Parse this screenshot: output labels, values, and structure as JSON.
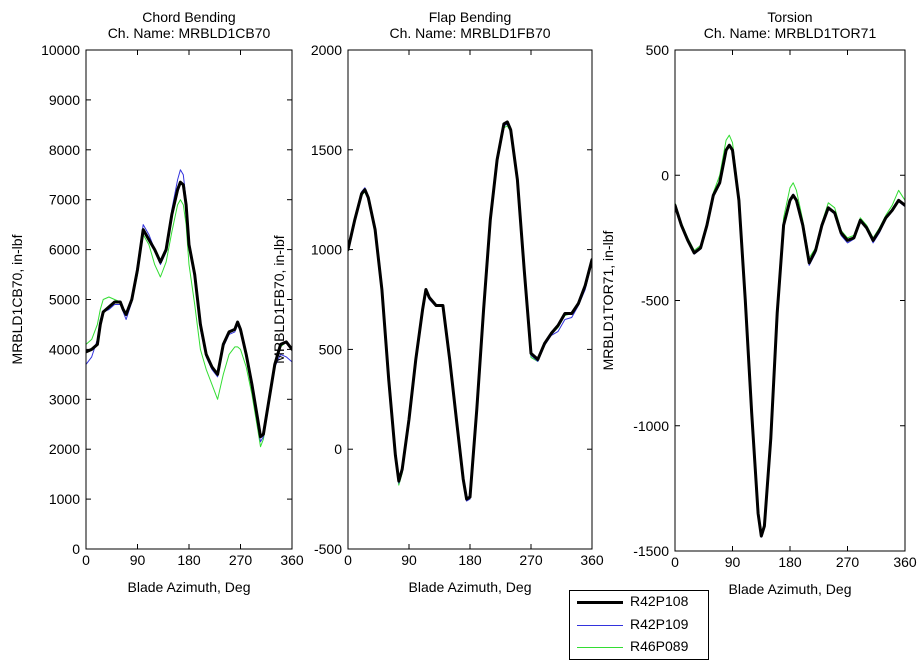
{
  "chart_data": [
    {
      "type": "line",
      "title": "Chord Bending",
      "subtitle": "Ch. Name: MRBLD1CB70",
      "xlabel": "Blade Azimuth, Deg",
      "ylabel": "MRBLD1CB70, in-lbf",
      "xlim": [
        0,
        360
      ],
      "ylim": [
        0,
        10000
      ],
      "xticks": [
        0,
        90,
        180,
        270,
        360
      ],
      "yticks": [
        0,
        1000,
        2000,
        3000,
        4000,
        5000,
        6000,
        7000,
        8000,
        9000,
        10000
      ],
      "grid": false,
      "series": [
        {
          "name": "R42P108",
          "x": [
            0,
            10,
            20,
            25,
            30,
            40,
            50,
            60,
            65,
            70,
            80,
            90,
            100,
            110,
            120,
            130,
            140,
            150,
            160,
            165,
            170,
            175,
            180,
            190,
            200,
            210,
            220,
            230,
            240,
            250,
            260,
            265,
            270,
            280,
            290,
            300,
            305,
            310,
            320,
            330,
            340,
            350,
            360
          ],
          "y": [
            3950,
            4000,
            4100,
            4500,
            4750,
            4850,
            4950,
            4950,
            4800,
            4700,
            5000,
            5600,
            6400,
            6200,
            6000,
            5750,
            6000,
            6700,
            7200,
            7350,
            7300,
            6900,
            6100,
            5500,
            4500,
            3900,
            3650,
            3500,
            4100,
            4350,
            4400,
            4550,
            4400,
            3900,
            3300,
            2600,
            2250,
            2300,
            3000,
            3700,
            4100,
            4150,
            4000
          ]
        },
        {
          "name": "R42P109",
          "x": [
            0,
            10,
            20,
            25,
            30,
            40,
            50,
            60,
            65,
            70,
            80,
            90,
            100,
            110,
            120,
            130,
            140,
            150,
            160,
            165,
            170,
            175,
            180,
            190,
            200,
            210,
            220,
            230,
            240,
            250,
            260,
            265,
            270,
            280,
            290,
            300,
            305,
            310,
            320,
            330,
            340,
            350,
            360
          ],
          "y": [
            3700,
            3850,
            4200,
            4600,
            4750,
            4800,
            4900,
            4900,
            4750,
            4600,
            4950,
            5700,
            6500,
            6300,
            6000,
            5700,
            5950,
            6800,
            7400,
            7600,
            7500,
            7000,
            6100,
            5400,
            4400,
            3850,
            3600,
            3450,
            4050,
            4300,
            4350,
            4500,
            4350,
            3850,
            3250,
            2500,
            2150,
            2250,
            2950,
            3650,
            3900,
            3850,
            3750
          ]
        },
        {
          "name": "R46P089",
          "x": [
            0,
            10,
            20,
            25,
            30,
            40,
            50,
            60,
            65,
            70,
            80,
            90,
            100,
            110,
            120,
            130,
            140,
            150,
            160,
            165,
            170,
            175,
            180,
            190,
            200,
            210,
            220,
            230,
            240,
            250,
            260,
            265,
            270,
            280,
            290,
            300,
            305,
            310,
            320,
            330,
            340,
            350,
            360
          ],
          "y": [
            4100,
            4200,
            4500,
            4800,
            5000,
            5050,
            5000,
            4950,
            4800,
            4700,
            4950,
            5500,
            6300,
            6100,
            5700,
            5450,
            5750,
            6350,
            6900,
            7000,
            6900,
            6500,
            5700,
            4900,
            4000,
            3600,
            3300,
            3000,
            3500,
            3900,
            4050,
            4050,
            4000,
            3650,
            3100,
            2400,
            2050,
            2200,
            2950,
            3700,
            4050,
            4150,
            4000
          ]
        }
      ]
    },
    {
      "type": "line",
      "title": "Flap Bending",
      "subtitle": "Ch. Name: MRBLD1FB70",
      "xlabel": "Blade Azimuth, Deg",
      "ylabel": "MRBLD1FB70, in-lbf",
      "xlim": [
        0,
        360
      ],
      "ylim": [
        -500,
        2000
      ],
      "xticks": [
        0,
        90,
        180,
        270,
        360
      ],
      "yticks": [
        -500,
        0,
        500,
        1000,
        1500,
        2000
      ],
      "grid": false,
      "series": [
        {
          "name": "R42P108",
          "x": [
            0,
            10,
            20,
            25,
            30,
            40,
            50,
            60,
            70,
            75,
            80,
            90,
            100,
            110,
            115,
            120,
            130,
            140,
            150,
            160,
            170,
            175,
            180,
            190,
            200,
            210,
            220,
            230,
            235,
            240,
            250,
            260,
            270,
            280,
            290,
            300,
            310,
            320,
            330,
            340,
            350,
            360
          ],
          "y": [
            1000,
            1150,
            1280,
            1300,
            1260,
            1100,
            800,
            350,
            -30,
            -160,
            -100,
            150,
            450,
            700,
            800,
            760,
            720,
            720,
            450,
            150,
            -150,
            -250,
            -240,
            200,
            700,
            1150,
            1450,
            1630,
            1640,
            1600,
            1350,
            900,
            480,
            450,
            530,
            580,
            620,
            680,
            680,
            730,
            820,
            950
          ]
        },
        {
          "name": "R42P109",
          "x": [
            0,
            10,
            20,
            25,
            30,
            40,
            50,
            60,
            70,
            75,
            80,
            90,
            100,
            110,
            115,
            120,
            130,
            140,
            150,
            160,
            170,
            175,
            180,
            190,
            200,
            210,
            220,
            230,
            235,
            240,
            250,
            260,
            270,
            280,
            290,
            300,
            310,
            320,
            330,
            340,
            350,
            360
          ],
          "y": [
            1010,
            1160,
            1290,
            1310,
            1270,
            1110,
            810,
            340,
            -40,
            -170,
            -110,
            140,
            440,
            690,
            790,
            750,
            715,
            715,
            440,
            140,
            -160,
            -260,
            -250,
            190,
            690,
            1140,
            1440,
            1620,
            1630,
            1590,
            1340,
            890,
            470,
            440,
            520,
            570,
            590,
            650,
            660,
            720,
            800,
            940
          ]
        },
        {
          "name": "R46P089",
          "x": [
            0,
            10,
            20,
            25,
            30,
            40,
            50,
            60,
            70,
            75,
            80,
            90,
            100,
            110,
            115,
            120,
            130,
            140,
            150,
            160,
            170,
            175,
            180,
            190,
            200,
            210,
            220,
            230,
            235,
            240,
            250,
            260,
            270,
            280,
            290,
            300,
            310,
            320,
            330,
            340,
            350,
            360
          ],
          "y": [
            990,
            1140,
            1270,
            1290,
            1250,
            1090,
            790,
            330,
            -50,
            -180,
            -120,
            130,
            430,
            690,
            790,
            755,
            715,
            715,
            445,
            145,
            -155,
            -255,
            -245,
            185,
            680,
            1130,
            1430,
            1610,
            1620,
            1590,
            1330,
            880,
            460,
            440,
            520,
            575,
            610,
            670,
            680,
            730,
            810,
            940
          ]
        }
      ]
    },
    {
      "type": "line",
      "title": "Torsion",
      "subtitle": "Ch. Name: MRBLD1TOR71",
      "xlabel": "Blade Azimuth, Deg",
      "ylabel": "MRBLD1TOR71, in-lbf",
      "xlim": [
        0,
        360
      ],
      "ylim": [
        -1500,
        500
      ],
      "xticks": [
        0,
        90,
        180,
        270,
        360
      ],
      "yticks": [
        -1500,
        -1000,
        -500,
        0,
        500
      ],
      "grid": false,
      "series": [
        {
          "name": "R42P108",
          "x": [
            0,
            10,
            20,
            30,
            40,
            50,
            60,
            70,
            80,
            85,
            90,
            100,
            110,
            120,
            130,
            135,
            140,
            150,
            160,
            170,
            180,
            185,
            190,
            200,
            210,
            220,
            230,
            240,
            250,
            260,
            270,
            280,
            290,
            300,
            310,
            320,
            330,
            340,
            350,
            360
          ],
          "y": [
            -120,
            -200,
            -260,
            -310,
            -290,
            -200,
            -80,
            -30,
            100,
            120,
            100,
            -100,
            -500,
            -950,
            -1350,
            -1440,
            -1400,
            -1050,
            -550,
            -200,
            -100,
            -80,
            -100,
            -200,
            -350,
            -300,
            -200,
            -130,
            -150,
            -230,
            -260,
            -250,
            -180,
            -210,
            -260,
            -220,
            -170,
            -140,
            -100,
            -120
          ]
        },
        {
          "name": "R42P109",
          "x": [
            0,
            10,
            20,
            30,
            40,
            50,
            60,
            70,
            80,
            85,
            90,
            100,
            110,
            120,
            130,
            135,
            140,
            150,
            160,
            170,
            180,
            185,
            190,
            200,
            210,
            220,
            230,
            240,
            250,
            260,
            270,
            280,
            290,
            300,
            310,
            320,
            330,
            340,
            350,
            360
          ],
          "y": [
            -115,
            -195,
            -265,
            -315,
            -295,
            -205,
            -85,
            -35,
            95,
            115,
            95,
            -105,
            -505,
            -955,
            -1355,
            -1445,
            -1405,
            -1055,
            -555,
            -205,
            -95,
            -75,
            -95,
            -205,
            -360,
            -310,
            -205,
            -135,
            -155,
            -240,
            -270,
            -255,
            -185,
            -215,
            -270,
            -230,
            -175,
            -145,
            -105,
            -125
          ]
        },
        {
          "name": "R46P089",
          "x": [
            0,
            10,
            20,
            30,
            40,
            50,
            60,
            70,
            80,
            85,
            90,
            100,
            110,
            120,
            130,
            135,
            140,
            150,
            160,
            170,
            180,
            185,
            190,
            200,
            210,
            220,
            230,
            240,
            250,
            260,
            270,
            280,
            290,
            300,
            310,
            320,
            330,
            340,
            350,
            360
          ],
          "y": [
            -110,
            -190,
            -250,
            -300,
            -280,
            -190,
            -70,
            0,
            140,
            160,
            130,
            -80,
            -480,
            -940,
            -1340,
            -1430,
            -1390,
            -1030,
            -520,
            -170,
            -50,
            -30,
            -60,
            -180,
            -330,
            -290,
            -190,
            -110,
            -130,
            -220,
            -250,
            -240,
            -170,
            -200,
            -250,
            -210,
            -160,
            -120,
            -60,
            -100
          ]
        }
      ]
    }
  ],
  "legend": {
    "placement": "bottom-center",
    "entries": [
      {
        "label": "R42P108",
        "color": "#000000"
      },
      {
        "label": "R42P109",
        "color": "#3333dd"
      },
      {
        "label": "R46P089",
        "color": "#33dd33"
      }
    ]
  }
}
